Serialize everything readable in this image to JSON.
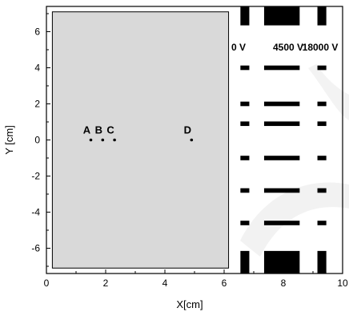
{
  "axes": {
    "xlabel": "X[cm]",
    "ylabel": "Y [cm]",
    "xlim": [
      0,
      10
    ],
    "ylim": [
      -7.4,
      7.4
    ],
    "x_ticks": [
      "0",
      "2",
      "4",
      "6",
      "8",
      "10"
    ],
    "y_ticks": [
      "6",
      "4",
      "2",
      "0",
      "-2",
      "-4",
      "-6"
    ],
    "x_tick_values": [
      0,
      2,
      4,
      6,
      8,
      10
    ],
    "y_tick_values": [
      6,
      4,
      2,
      0,
      -2,
      -4,
      -6
    ]
  },
  "region": {
    "x_range": [
      0.2,
      6.15
    ],
    "y_range": [
      -7.1,
      7.1
    ],
    "fill": "#d9d9d9"
  },
  "electrodes": {
    "voltages": [
      {
        "label": "0 V",
        "x_center": 6.7,
        "width": 0.3
      },
      {
        "label": "4500 V",
        "x_center": 7.95,
        "width": 1.2
      },
      {
        "label": "18000 V",
        "x_center": 9.3,
        "width": 0.3
      }
    ],
    "end_plate_heights": 1.2,
    "bar_y_values": [
      4,
      2,
      0.9,
      -1,
      -2.8,
      -4.6
    ],
    "bar_thickness": 0.25,
    "end_plate_top_y": [
      6.35,
      7.4
    ],
    "end_plate_bottom_y": [
      -7.4,
      -6.15
    ]
  },
  "points": [
    {
      "label": "A",
      "x": 1.5,
      "y": 0
    },
    {
      "label": "B",
      "x": 1.9,
      "y": 0
    },
    {
      "label": "C",
      "x": 2.3,
      "y": 0
    },
    {
      "label": "D",
      "x": 4.9,
      "y": 0
    }
  ]
}
